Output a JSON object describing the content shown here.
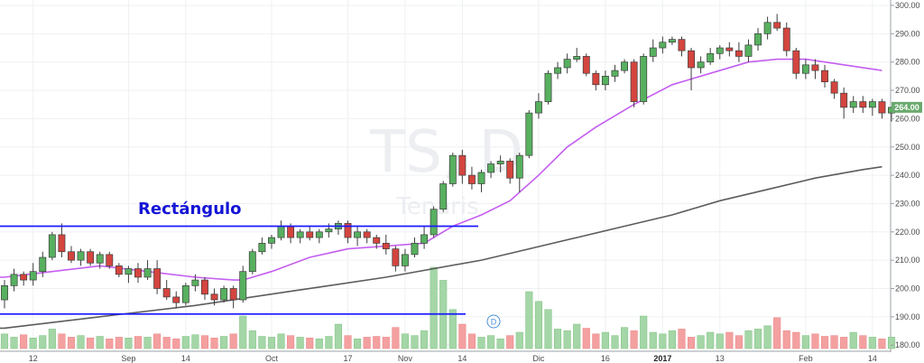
{
  "chart_data": {
    "type": "candlestick",
    "symbol_watermark": "TS, D",
    "name_watermark": "Tenaris",
    "annotation": "Rectángulo",
    "last_price_label": "264.00",
    "event_marker": "D",
    "ylim": [
      177,
      302
    ],
    "y_ticks": [
      "300.00",
      "290.00",
      "280.00",
      "270.00",
      "260.00",
      "250.00",
      "240.00",
      "230.00",
      "220.00",
      "210.00",
      "200.00",
      "190.00",
      "180.00"
    ],
    "x_ticks": [
      "12",
      "Sep",
      "14",
      "Oct",
      "17",
      "Nov",
      "14",
      "Dic",
      "16",
      "2017",
      "13",
      "Feb",
      "14"
    ],
    "grid": true,
    "colors": {
      "up": "#57b05f",
      "down": "#d4453f",
      "vol_up": "#a5d6a7",
      "vol_down": "#f4a0a0",
      "ma_fast": "#c45ef0",
      "ma_slow": "#5c5c5c",
      "rect_lines": "#1a1aff",
      "annotation": "#1414d6",
      "price_tag": "#6aaa6e",
      "event_marker": "#4a8fd8"
    },
    "rectangle_levels": {
      "top": 222,
      "bottom": 191
    },
    "candles": [
      [
        196,
        203,
        193,
        201
      ],
      [
        201,
        207,
        199,
        205
      ],
      [
        205,
        206,
        201,
        203
      ],
      [
        203,
        209,
        201,
        206
      ],
      [
        206,
        213,
        204,
        211
      ],
      [
        211,
        220,
        210,
        219
      ],
      [
        219,
        223,
        211,
        213
      ],
      [
        213,
        215,
        209,
        210
      ],
      [
        210,
        214,
        208,
        213
      ],
      [
        213,
        214,
        208,
        209
      ],
      [
        209,
        213,
        207,
        212
      ],
      [
        212,
        213,
        207,
        208
      ],
      [
        208,
        209,
        204,
        205
      ],
      [
        205,
        208,
        202,
        207
      ],
      [
        207,
        209,
        202,
        204
      ],
      [
        204,
        210,
        203,
        207
      ],
      [
        207,
        210,
        198,
        200
      ],
      [
        200,
        203,
        196,
        197
      ],
      [
        197,
        199,
        193,
        195
      ],
      [
        195,
        202,
        194,
        201
      ],
      [
        201,
        205,
        199,
        203
      ],
      [
        203,
        204,
        196,
        198
      ],
      [
        198,
        200,
        194,
        196
      ],
      [
        196,
        201,
        195,
        200
      ],
      [
        200,
        201,
        193,
        196
      ],
      [
        196,
        208,
        195,
        206
      ],
      [
        206,
        214,
        205,
        213
      ],
      [
        213,
        218,
        212,
        216
      ],
      [
        216,
        219,
        214,
        218
      ],
      [
        218,
        224,
        217,
        222
      ],
      [
        222,
        223,
        216,
        218
      ],
      [
        218,
        221,
        216,
        220
      ],
      [
        220,
        222,
        217,
        218
      ],
      [
        218,
        221,
        216,
        220
      ],
      [
        220,
        223,
        218,
        221
      ],
      [
        221,
        224,
        219,
        223
      ],
      [
        223,
        224,
        216,
        218
      ],
      [
        218,
        222,
        215,
        220
      ],
      [
        220,
        221,
        216,
        218
      ],
      [
        218,
        219,
        214,
        216
      ],
      [
        216,
        219,
        212,
        214
      ],
      [
        214,
        215,
        206,
        208
      ],
      [
        208,
        214,
        206,
        212
      ],
      [
        212,
        218,
        211,
        216
      ],
      [
        216,
        222,
        214,
        219
      ],
      [
        219,
        229,
        218,
        228
      ],
      [
        228,
        238,
        227,
        237
      ],
      [
        237,
        248,
        236,
        247
      ],
      [
        247,
        249,
        237,
        240
      ],
      [
        240,
        243,
        235,
        237
      ],
      [
        237,
        242,
        234,
        241
      ],
      [
        241,
        245,
        239,
        244
      ],
      [
        244,
        247,
        241,
        245
      ],
      [
        245,
        246,
        237,
        239
      ],
      [
        239,
        248,
        234,
        247
      ],
      [
        247,
        263,
        246,
        262
      ],
      [
        262,
        269,
        260,
        266
      ],
      [
        266,
        277,
        265,
        276
      ],
      [
        276,
        280,
        274,
        278
      ],
      [
        278,
        283,
        276,
        281
      ],
      [
        281,
        285,
        280,
        282
      ],
      [
        282,
        283,
        275,
        276
      ],
      [
        276,
        277,
        270,
        272
      ],
      [
        272,
        277,
        270,
        275
      ],
      [
        275,
        279,
        273,
        277
      ],
      [
        277,
        281,
        276,
        280
      ],
      [
        280,
        281,
        264,
        266
      ],
      [
        266,
        283,
        265,
        282
      ],
      [
        282,
        288,
        280,
        285
      ],
      [
        285,
        289,
        283,
        287
      ],
      [
        287,
        289,
        286,
        288
      ],
      [
        288,
        289,
        282,
        284
      ],
      [
        284,
        285,
        270,
        278
      ],
      [
        278,
        282,
        276,
        280
      ],
      [
        280,
        285,
        279,
        283
      ],
      [
        283,
        286,
        281,
        285
      ],
      [
        285,
        287,
        282,
        284
      ],
      [
        284,
        287,
        280,
        282
      ],
      [
        282,
        288,
        280,
        286
      ],
      [
        286,
        292,
        284,
        290
      ],
      [
        290,
        296,
        288,
        294
      ],
      [
        294,
        297,
        291,
        292
      ],
      [
        292,
        294,
        282,
        284
      ],
      [
        284,
        285,
        274,
        276
      ],
      [
        276,
        281,
        274,
        279
      ],
      [
        279,
        281,
        274,
        277
      ],
      [
        277,
        279,
        271,
        273
      ],
      [
        273,
        274,
        267,
        269
      ],
      [
        269,
        271,
        260,
        264
      ],
      [
        264,
        268,
        262,
        266
      ],
      [
        266,
        268,
        262,
        264
      ],
      [
        264,
        267,
        261,
        266
      ],
      [
        266,
        267,
        260,
        262
      ],
      [
        262,
        264,
        259,
        264
      ]
    ],
    "volumes": [
      18,
      14,
      17,
      13,
      16,
      24,
      18,
      14,
      16,
      13,
      15,
      12,
      14,
      13,
      15,
      14,
      18,
      14,
      12,
      15,
      17,
      16,
      13,
      15,
      18,
      40,
      22,
      15,
      14,
      18,
      16,
      14,
      13,
      12,
      15,
      30,
      16,
      12,
      14,
      15,
      14,
      26,
      18,
      16,
      22,
      100,
      84,
      48,
      30,
      18,
      14,
      16,
      12,
      16,
      20,
      70,
      58,
      48,
      24,
      22,
      30,
      25,
      18,
      20,
      16,
      26,
      22,
      40,
      20,
      18,
      22,
      24,
      14,
      16,
      20,
      18,
      20,
      16,
      22,
      24,
      28,
      38,
      22,
      20,
      16,
      18,
      15,
      16,
      14,
      20,
      16,
      14,
      12,
      14
    ],
    "ma_fast_line": [
      [
        -1,
        204
      ],
      [
        0,
        204
      ],
      [
        5,
        206
      ],
      [
        10,
        208
      ],
      [
        15,
        206
      ],
      [
        20,
        204
      ],
      [
        24,
        203
      ],
      [
        25,
        203
      ],
      [
        28,
        206
      ],
      [
        32,
        211
      ],
      [
        36,
        214
      ],
      [
        40,
        215
      ],
      [
        44,
        216
      ],
      [
        47,
        222
      ],
      [
        50,
        226
      ],
      [
        53,
        231
      ],
      [
        56,
        240
      ],
      [
        59,
        250
      ],
      [
        62,
        257
      ],
      [
        66,
        265
      ],
      [
        70,
        272
      ],
      [
        74,
        276
      ],
      [
        78,
        280
      ],
      [
        81,
        281
      ],
      [
        84,
        281
      ],
      [
        88,
        279
      ],
      [
        92,
        277
      ]
    ],
    "ma_slow_line": [
      [
        -1,
        186
      ],
      [
        0,
        186
      ],
      [
        10,
        190
      ],
      [
        20,
        194
      ],
      [
        30,
        199
      ],
      [
        40,
        204
      ],
      [
        50,
        210
      ],
      [
        55,
        214
      ],
      [
        60,
        218
      ],
      [
        65,
        222
      ],
      [
        70,
        226
      ],
      [
        75,
        231
      ],
      [
        80,
        235
      ],
      [
        85,
        239
      ],
      [
        90,
        242
      ],
      [
        92,
        243
      ]
    ]
  }
}
